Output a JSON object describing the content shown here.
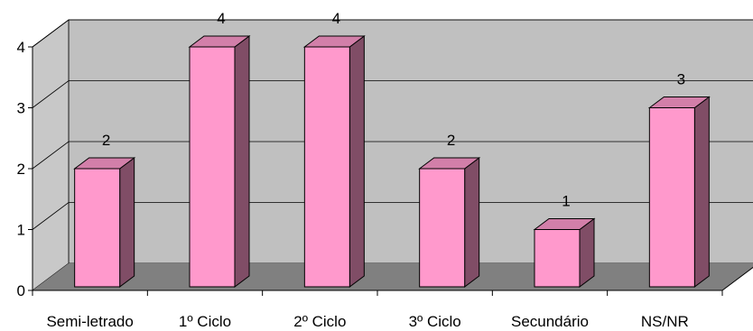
{
  "chart_data": {
    "type": "bar",
    "title": "",
    "xlabel": "",
    "ylabel": "",
    "categories": [
      "Semi-letrado",
      "1º Ciclo",
      "2º Ciclo",
      "3º Ciclo",
      "Secundário",
      "NS/NR"
    ],
    "values": [
      2,
      4,
      4,
      2,
      1,
      3
    ],
    "data_labels": [
      "2",
      "4",
      "4",
      "2",
      "1",
      "3"
    ],
    "y_ticks": [
      "0",
      "1",
      "2",
      "3",
      "4"
    ],
    "ylim": [
      0,
      4
    ],
    "grid": true,
    "legend": "none",
    "style": "3d-column",
    "colors": {
      "bar_front": "#ff99cc",
      "bar_side": "#804d66",
      "bar_top": "#d27fa9",
      "back_wall": "#c0c0c0",
      "floor": "#808080",
      "side_wall": "#c8c8c8",
      "grid": "#000000"
    }
  }
}
